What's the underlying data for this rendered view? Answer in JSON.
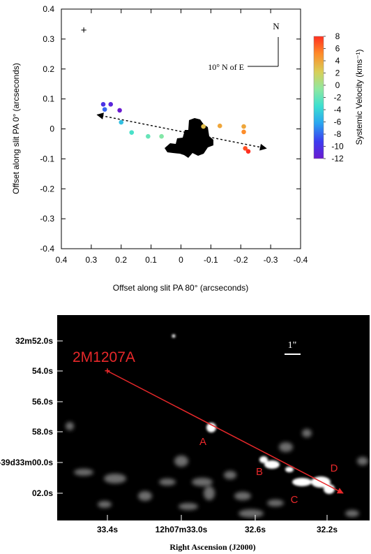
{
  "chart_data": [
    {
      "type": "scatter",
      "title": "",
      "xlabel": "Offset along slit PA 80° (arcseconds)",
      "ylabel": "Offset along slit PA 0° (arcseconds)",
      "xlim": [
        0.4,
        -0.4
      ],
      "ylim": [
        -0.4,
        0.4
      ],
      "x_reversed": true,
      "x_ticks": [
        0.4,
        0.3,
        0.2,
        0.1,
        0,
        -0.1,
        -0.2,
        -0.3,
        -0.4
      ],
      "x_tick_labels": [
        "0.4",
        "0.3",
        "0.2",
        "0.1",
        "0",
        "-0.1",
        "-0.2",
        "-0.3",
        "-0.4"
      ],
      "y_ticks": [
        0.4,
        0.3,
        0.2,
        0.1,
        0,
        -0.1,
        -0.2,
        -0.3,
        -0.4
      ],
      "y_tick_labels": [
        "0.4",
        "0.3",
        "0.2",
        "0.1",
        "0",
        "-0.1",
        "-0.2",
        "-0.3",
        "-0.4"
      ],
      "grid": false,
      "points": [
        {
          "x": 0.26,
          "y": 0.082,
          "v": -10
        },
        {
          "x": 0.235,
          "y": 0.082,
          "v": -11
        },
        {
          "x": 0.255,
          "y": 0.065,
          "v": -8
        },
        {
          "x": 0.205,
          "y": 0.062,
          "v": -12
        },
        {
          "x": 0.2,
          "y": 0.022,
          "v": -5
        },
        {
          "x": 0.165,
          "y": -0.012,
          "v": -3
        },
        {
          "x": 0.11,
          "y": -0.025,
          "v": -2
        },
        {
          "x": 0.065,
          "y": -0.025,
          "v": -1
        },
        {
          "x": -0.075,
          "y": 0.008,
          "v": 3
        },
        {
          "x": -0.13,
          "y": 0.01,
          "v": 4
        },
        {
          "x": -0.21,
          "y": 0.008,
          "v": 4
        },
        {
          "x": -0.21,
          "y": -0.01,
          "v": 5
        },
        {
          "x": -0.215,
          "y": -0.065,
          "v": 7
        },
        {
          "x": -0.225,
          "y": -0.075,
          "v": 8
        }
      ],
      "arrow": {
        "from": [
          0.28,
          0.047
        ],
        "to": [
          -0.285,
          -0.065
        ]
      },
      "reference_point": {
        "x": 0.325,
        "y": 0.328
      },
      "colorbar": {
        "label": "Systemic Velocity (kms⁻¹)",
        "min": -12,
        "max": 8,
        "ticks": [
          8,
          6,
          4,
          2,
          0,
          -2,
          -4,
          -6,
          -8,
          -10,
          -12
        ],
        "tick_labels": [
          "8",
          "6",
          "4",
          "2",
          "0",
          "-2",
          "-4",
          "-6",
          "-8",
          "-10",
          "-12"
        ],
        "colors": [
          "#ff3020",
          "#ff8a28",
          "#d8cf58",
          "#8fe8a0",
          "#3de0d0",
          "#2aa6f0",
          "#3c3cf0",
          "#6a1ad0"
        ]
      },
      "compass": {
        "north_label": "N",
        "angle_label": "10° N of E"
      }
    },
    {
      "type": "image",
      "xlabel": "Right Ascension (J2000)",
      "x_tick_labels": [
        "33.4s",
        "12h07m33.0s",
        "32.6s",
        "32.2s"
      ],
      "y_tick_labels": [
        "32m52.0s",
        "54.0s",
        "56.0s",
        "58.0s",
        "-39d33m00.0s",
        "02.0s"
      ],
      "target_label": "2M1207A",
      "scale_label": "1\"",
      "knot_labels": [
        "A",
        "B",
        "C",
        "D"
      ],
      "colors": {
        "annotation": "#e8282a",
        "background": "#000000"
      }
    }
  ]
}
